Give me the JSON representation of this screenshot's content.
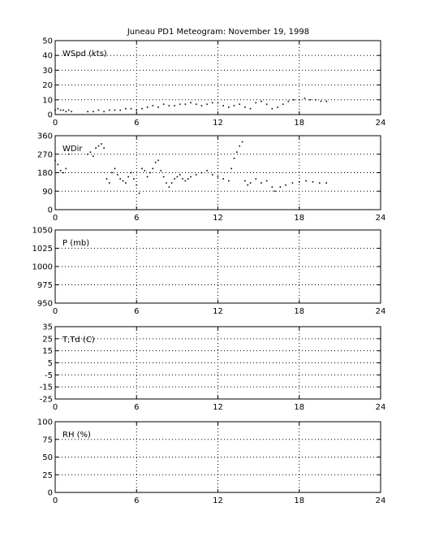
{
  "figure": {
    "title": "Juneau PD1 Meteogram:  November 19, 1998"
  },
  "chart_data": [
    {
      "type": "scatter",
      "title": "Juneau PD1 Meteogram:  November 19, 1998",
      "panel_label": "WSpd (kts)",
      "xlim": [
        0,
        24
      ],
      "ylim": [
        0,
        50
      ],
      "xticks": [
        0,
        6,
        12,
        18,
        24
      ],
      "yticks": [
        0,
        10,
        20,
        30,
        40,
        50
      ],
      "grid": true,
      "color": "#000000",
      "series": [
        {
          "x": [
            0.0,
            0.2,
            0.4,
            0.6,
            0.8,
            1.0,
            1.2,
            2.4,
            2.8,
            3.2,
            3.6,
            4.0,
            4.4,
            4.8,
            5.2,
            5.6,
            6.0,
            6.4,
            6.8,
            7.2,
            7.6,
            8.0,
            8.4,
            8.8,
            9.2,
            9.6,
            10.0,
            10.4,
            10.8,
            11.2,
            11.6,
            12.0,
            12.4,
            12.8,
            13.2,
            13.6,
            14.0,
            14.4,
            14.8,
            15.2,
            15.6,
            16.0,
            16.4,
            16.8,
            17.2,
            17.6,
            18.0,
            18.4,
            18.8,
            19.2,
            19.6,
            20.0
          ],
          "y": [
            3,
            4,
            3,
            3,
            2,
            3,
            2,
            2,
            2,
            3,
            2,
            3,
            3,
            3,
            4,
            4,
            3,
            4,
            5,
            6,
            5,
            7,
            6,
            6,
            7,
            7,
            8,
            7,
            6,
            7,
            8,
            8,
            6,
            5,
            6,
            7,
            5,
            4,
            8,
            9,
            7,
            4,
            5,
            7,
            9,
            10,
            10,
            11,
            10,
            10,
            9,
            9
          ]
        }
      ]
    },
    {
      "type": "scatter",
      "panel_label": "WDir",
      "xlim": [
        0,
        24
      ],
      "ylim": [
        0,
        360
      ],
      "xticks": [
        0,
        6,
        12,
        18,
        24
      ],
      "yticks": [
        0,
        90,
        180,
        270,
        360
      ],
      "grid": true,
      "color": "#000000",
      "series": [
        {
          "x": [
            0.0,
            0.2,
            0.4,
            0.6,
            0.8,
            1.0,
            2.4,
            2.6,
            2.8,
            3.0,
            3.2,
            3.4,
            3.6,
            3.8,
            4.0,
            4.2,
            4.4,
            4.6,
            4.8,
            5.0,
            5.2,
            5.4,
            5.6,
            5.8,
            6.0,
            6.2,
            6.4,
            6.6,
            6.8,
            7.0,
            7.2,
            7.4,
            7.6,
            7.8,
            8.0,
            8.2,
            8.4,
            8.6,
            8.8,
            9.0,
            9.2,
            9.4,
            9.6,
            9.8,
            10.0,
            10.4,
            10.8,
            11.2,
            11.6,
            12.0,
            12.4,
            12.8,
            13.0,
            13.2,
            13.4,
            13.6,
            13.8,
            14.0,
            14.2,
            14.4,
            14.8,
            15.2,
            15.6,
            16.0,
            16.2,
            16.6,
            17.0,
            17.5,
            18.0,
            18.5,
            19.0,
            19.5,
            20.0
          ],
          "y": [
            240,
            220,
            190,
            180,
            200,
            270,
            270,
            280,
            260,
            300,
            310,
            320,
            300,
            150,
            130,
            180,
            200,
            170,
            150,
            140,
            130,
            160,
            180,
            150,
            120,
            80,
            200,
            190,
            160,
            180,
            200,
            230,
            240,
            190,
            160,
            130,
            110,
            130,
            150,
            160,
            170,
            150,
            140,
            150,
            160,
            170,
            180,
            190,
            170,
            160,
            150,
            140,
            200,
            250,
            280,
            310,
            330,
            140,
            120,
            130,
            150,
            130,
            140,
            110,
            90,
            110,
            120,
            130,
            135,
            140,
            135,
            130,
            130
          ]
        }
      ]
    },
    {
      "type": "scatter",
      "panel_label": "P (mb)",
      "xlim": [
        0,
        24
      ],
      "ylim": [
        950,
        1050
      ],
      "xticks": [
        0,
        6,
        12,
        18,
        24
      ],
      "yticks": [
        950,
        975,
        1000,
        1025,
        1050
      ],
      "grid": true,
      "series": []
    },
    {
      "type": "scatter",
      "panel_label": "T,Td (C)",
      "xlim": [
        0,
        24
      ],
      "ylim": [
        -25,
        35
      ],
      "xticks": [
        0,
        6,
        12,
        18,
        24
      ],
      "yticks": [
        -25,
        -15,
        -5,
        5,
        15,
        25,
        35
      ],
      "yticklabels": [
        "-25",
        "-15",
        "-5",
        "5",
        "15",
        "25",
        "35"
      ],
      "grid": true,
      "series": []
    },
    {
      "type": "scatter",
      "panel_label": "RH (%)",
      "xlim": [
        0,
        24
      ],
      "ylim": [
        0,
        100
      ],
      "xticks": [
        0,
        6,
        12,
        18,
        24
      ],
      "yticks": [
        0,
        25,
        50,
        75,
        100
      ],
      "grid": true,
      "series": []
    }
  ]
}
